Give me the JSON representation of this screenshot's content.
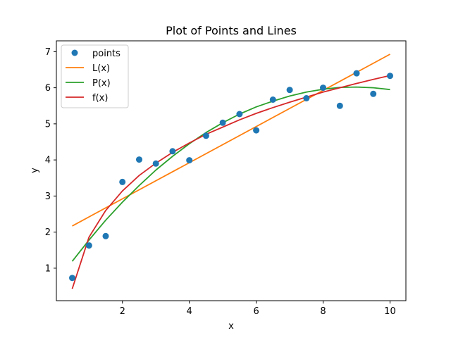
{
  "chart_data": {
    "type": "scatter",
    "title": "Plot of Points and Lines",
    "xlabel": "x",
    "ylabel": "y",
    "xlim": [
      0.025,
      10.475
    ],
    "ylim": [
      0.1,
      7.3
    ],
    "xticks": [
      2,
      4,
      6,
      8,
      10
    ],
    "yticks": [
      1,
      2,
      3,
      4,
      5,
      6,
      7
    ],
    "grid": false,
    "legend_position": "top-left",
    "points": {
      "name": "points",
      "color": "#1f77b4",
      "x": [
        0.5,
        1.0,
        1.5,
        2.0,
        2.5,
        3.0,
        3.5,
        4.0,
        4.5,
        5.0,
        5.5,
        6.0,
        6.5,
        7.0,
        7.5,
        8.0,
        8.5,
        9.0,
        9.5,
        10.0
      ],
      "y": [
        0.73,
        1.63,
        1.89,
        3.39,
        4.01,
        3.9,
        4.24,
        3.99,
        4.67,
        5.03,
        5.27,
        4.82,
        5.67,
        5.94,
        5.71,
        6.0,
        5.5,
        6.4,
        5.83,
        6.33
      ]
    },
    "series": [
      {
        "name": "L(x)",
        "color": "#ff7f0e",
        "x": [
          0.5,
          10.0
        ],
        "y": [
          2.17,
          6.93
        ]
      },
      {
        "name": "P(x)",
        "color": "#2ca02c",
        "x": [
          0.5,
          1.0,
          1.5,
          2.0,
          2.5,
          3.0,
          3.5,
          4.0,
          4.5,
          5.0,
          5.5,
          6.0,
          6.5,
          7.0,
          7.5,
          8.0,
          8.5,
          9.0,
          9.5,
          10.0
        ],
        "y": [
          1.19,
          1.78,
          2.33,
          2.83,
          3.29,
          3.72,
          4.1,
          4.45,
          4.76,
          5.03,
          5.27,
          5.47,
          5.63,
          5.77,
          5.88,
          5.96,
          6.01,
          6.02,
          6.0,
          5.95
        ]
      },
      {
        "name": "f(x)",
        "color": "#d62728",
        "x": [
          0.5,
          1.0,
          1.5,
          2.0,
          2.5,
          3.0,
          3.5,
          4.0,
          4.5,
          5.0,
          5.5,
          6.0,
          6.5,
          7.0,
          7.5,
          8.0,
          8.5,
          9.0,
          9.5,
          10.0
        ],
        "y": [
          0.43,
          1.86,
          2.6,
          3.14,
          3.57,
          3.91,
          4.21,
          4.47,
          4.71,
          4.91,
          5.11,
          5.29,
          5.45,
          5.6,
          5.74,
          5.88,
          6.0,
          6.12,
          6.23,
          6.34
        ]
      }
    ]
  }
}
